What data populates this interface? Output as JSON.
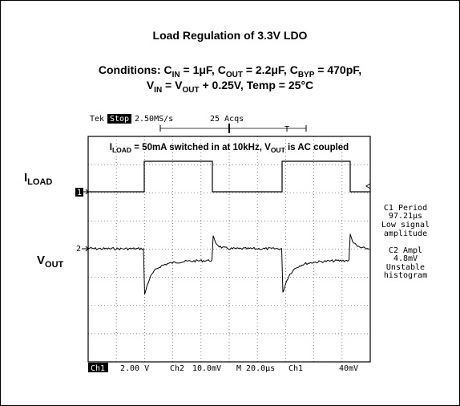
{
  "figure": {
    "title": "Load Regulation of 3.3V LDO",
    "conditions": [
      [
        "Conditions: C",
        "IN",
        " = 1μF, C",
        "OUT",
        " = 2.2μF, C",
        "BYP",
        " = 470pF,"
      ],
      [
        "V",
        "IN",
        " = V",
        "OUT",
        " + 0.25V, Temp = 25°C"
      ]
    ]
  },
  "scope": {
    "header": [
      "Tek",
      "Stop",
      "2.50MS/s",
      "25 Acqs"
    ],
    "annotation": [
      "I",
      "LOAD",
      " = 50mA switched in at 10kHz, V",
      "OUT",
      " is AC coupled"
    ],
    "channel_labels": [
      [
        "I",
        "LOAD"
      ],
      [
        "V",
        "OUT"
      ]
    ],
    "markers": [
      "1",
      "2"
    ],
    "footer": [
      "Ch1",
      "2.00 V",
      "Ch2",
      "10.0mV",
      "M 20.0μs",
      "Ch1",
      "40mV"
    ],
    "measurements": [
      "C1 Period",
      "97.21μs",
      "Low signal",
      "amplitude",
      "C2 Ampl",
      "4.8mV",
      "Unstable",
      "histogram"
    ]
  }
}
